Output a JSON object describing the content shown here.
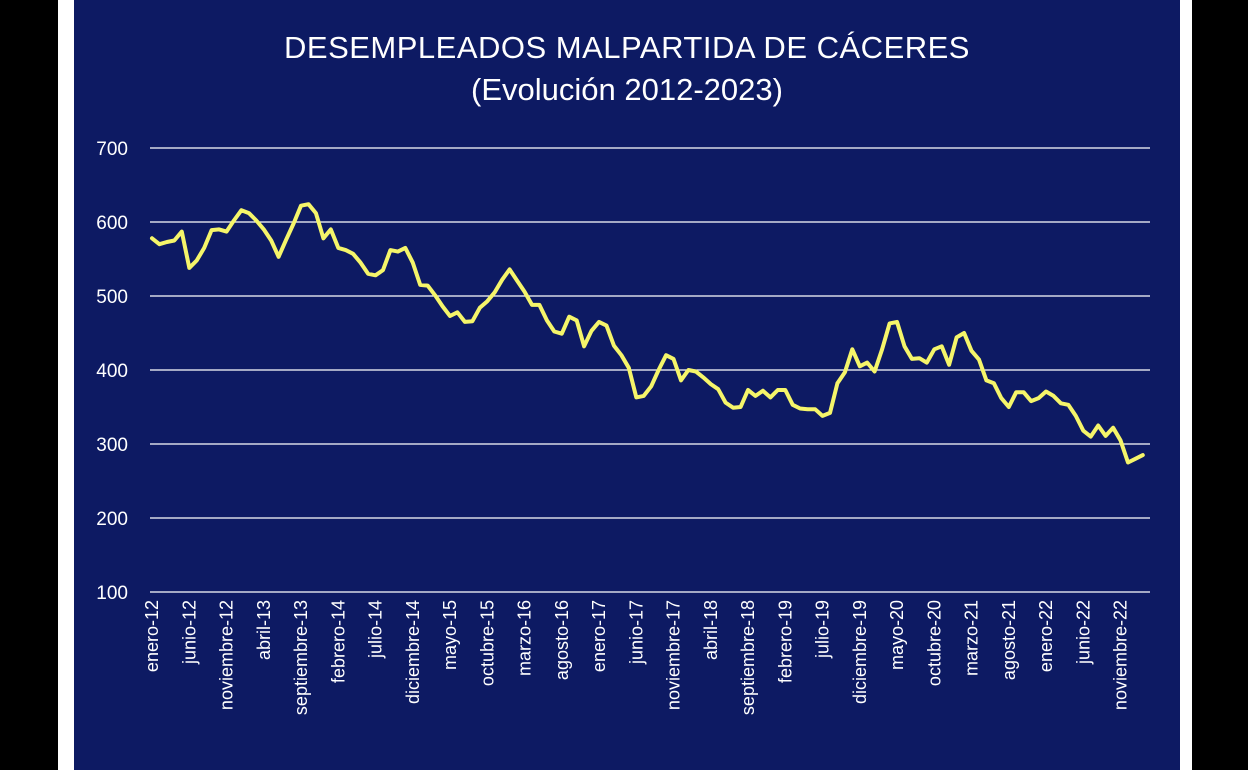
{
  "chart_data": {
    "type": "line",
    "title": "DESEMPLEADOS MALPARTIDA DE CÁCERES",
    "subtitle": "(Evolución 2012-2023)",
    "ylim": [
      100,
      700
    ],
    "yticks": [
      100,
      200,
      300,
      400,
      500,
      600,
      700
    ],
    "grid": true,
    "line_color": "#f5f56a",
    "background_color": "#0d1a63",
    "x_tick_labels": [
      "enero-12",
      "junio-12",
      "noviembre-12",
      "abril-13",
      "septiembre-13",
      "febrero-14",
      "julio-14",
      "diciembre-14",
      "mayo-15",
      "octubre-15",
      "marzo-16",
      "agosto-16",
      "enero-17",
      "junio-17",
      "noviembre-17",
      "abril-18",
      "septiembre-18",
      "febrero-19",
      "julio-19",
      "diciembre-19",
      "mayo-20",
      "octubre-20",
      "marzo-21",
      "agosto-21",
      "enero-22",
      "junio-22",
      "noviembre-22"
    ],
    "series": [
      {
        "values": [
          578,
          570,
          573,
          575,
          587,
          538,
          548,
          565,
          589,
          590,
          587,
          602,
          616,
          612,
          602,
          590,
          575,
          553,
          576,
          598,
          622,
          624,
          612,
          578,
          590,
          565,
          562,
          557,
          545,
          530,
          528,
          535,
          562,
          560,
          565,
          545,
          515,
          514,
          501,
          486,
          473,
          478,
          465,
          466,
          484,
          493,
          505,
          522,
          536,
          521,
          506,
          488,
          488,
          467,
          452,
          449,
          472,
          467,
          432,
          453,
          465,
          460,
          433,
          420,
          403,
          363,
          365,
          378,
          400,
          420,
          415,
          386,
          400,
          398,
          390,
          381,
          374,
          356,
          349,
          350,
          373,
          365,
          372,
          363,
          373,
          373,
          353,
          348,
          347,
          347,
          338,
          342,
          382,
          397,
          428,
          405,
          410,
          398,
          428,
          463,
          465,
          432,
          415,
          416,
          410,
          428,
          432,
          407,
          444,
          450,
          426,
          414,
          386,
          382,
          362,
          350,
          370,
          370,
          358,
          362,
          371,
          365,
          355,
          353,
          338,
          318,
          310,
          325,
          311,
          322,
          305,
          275,
          280,
          285
        ]
      }
    ]
  }
}
